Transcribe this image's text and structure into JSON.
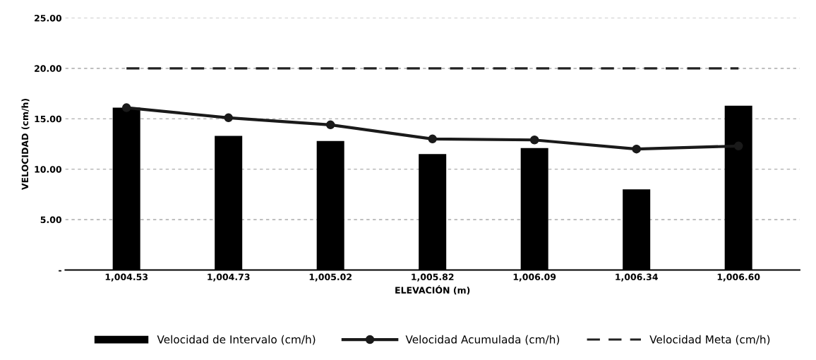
{
  "chart_data": {
    "type": "bar",
    "xlabel": "ELEVACIÓN (m)",
    "ylabel": "VELOCIDAD (cm/h)",
    "categories": [
      "1,004.53",
      "1,004.73",
      "1,005.02",
      "1,005.82",
      "1,006.09",
      "1,006.34",
      "1,006.60"
    ],
    "series": [
      {
        "name": "Velocidad de Intervalo (cm/h)",
        "color": "#000000",
        "values": [
          16.1,
          13.3,
          12.8,
          11.5,
          12.1,
          8.0,
          16.3
        ]
      },
      {
        "name": "Velocidad Acumulada (cm/h)",
        "type": "line",
        "color": "#1a1a1a",
        "marker": "circle",
        "line_style": "solid",
        "values": [
          16.1,
          15.1,
          14.4,
          13.0,
          12.9,
          12.0,
          12.3
        ]
      },
      {
        "name": "Velocidad Meta (cm/h)",
        "type": "line",
        "color": "#222222",
        "marker": "none",
        "line_style": "dashed",
        "values": [
          20,
          20,
          20,
          20,
          20,
          20,
          20
        ]
      }
    ],
    "ylim": [
      0,
      25
    ],
    "yticks": [
      {
        "value": 0,
        "label": "-"
      },
      {
        "value": 5,
        "label": "5.00"
      },
      {
        "value": 10,
        "label": "10.00"
      },
      {
        "value": 15,
        "label": "15.00"
      },
      {
        "value": 20,
        "label": "20.00"
      },
      {
        "value": 25,
        "label": "25.00"
      }
    ],
    "grid": "y",
    "legend": "bottom"
  }
}
